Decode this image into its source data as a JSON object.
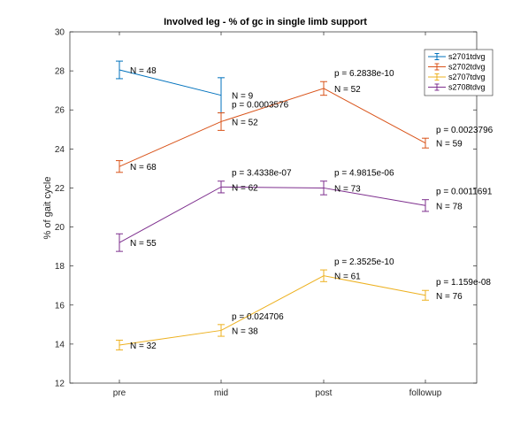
{
  "chart_data": {
    "type": "line",
    "title": "Involved leg - % of gc in single limb support",
    "xlabel": "",
    "ylabel": "% of gait cycle",
    "categories": [
      "pre",
      "mid",
      "post",
      "followup"
    ],
    "ylim": [
      12,
      30
    ],
    "yticks": [
      12,
      14,
      16,
      18,
      20,
      22,
      24,
      26,
      28,
      30
    ],
    "grid": false,
    "legend_position": "top-right",
    "series": [
      {
        "name": "s2701tdvg",
        "color": "#0072BD",
        "values": [
          28.05,
          26.75,
          null,
          null
        ],
        "err": [
          0.45,
          0.9,
          null,
          null
        ],
        "labels": [
          "N = 48",
          "N = 9",
          "",
          ""
        ],
        "pvals": [
          "",
          "",
          "",
          ""
        ]
      },
      {
        "name": "s2702tdvg",
        "color": "#D95319",
        "values": [
          23.1,
          25.4,
          27.1,
          24.3
        ],
        "err": [
          0.3,
          0.45,
          0.35,
          0.25
        ],
        "labels": [
          "N = 68",
          "N = 52",
          "N = 52",
          "N = 59"
        ],
        "pvals": [
          "",
          "p = 0.0003576",
          "p = 6.2838e-10",
          "p = 0.0023796"
        ]
      },
      {
        "name": "s2707tdvg",
        "color": "#EDB120",
        "values": [
          13.95,
          14.7,
          17.5,
          16.5
        ],
        "err": [
          0.25,
          0.3,
          0.3,
          0.25
        ],
        "labels": [
          "N = 32",
          "N = 38",
          "N = 61",
          "N = 76"
        ],
        "pvals": [
          "",
          "p = 0.024706",
          "p = 2.3525e-10",
          "p = 1.159e-08"
        ]
      },
      {
        "name": "s2708tdvg",
        "color": "#7E2F8E",
        "values": [
          19.2,
          22.05,
          22.0,
          21.1
        ],
        "err": [
          0.45,
          0.3,
          0.35,
          0.3
        ],
        "labels": [
          "N = 55",
          "N = 62",
          "N = 73",
          "N = 78"
        ],
        "pvals": [
          "",
          "p = 3.4338e-07",
          "p = 4.9815e-06",
          "p = 0.0011691"
        ]
      }
    ]
  }
}
